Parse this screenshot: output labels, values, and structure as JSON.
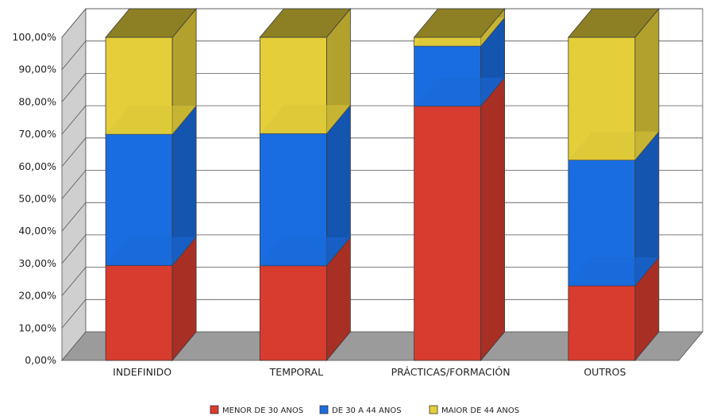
{
  "chart_data": {
    "type": "bar",
    "stacked": true,
    "three_d": true,
    "categories": [
      "INDEFINIDO",
      "TEMPORAL",
      "PRÁCTICAS/FORMACIÓN",
      "OUTROS"
    ],
    "series": [
      {
        "name": "MENOR DE 30 ANOS",
        "color": "#d83c2e",
        "values": [
          29.4,
          29.3,
          78.7,
          23.1
        ]
      },
      {
        "name": "DE 30 A 44 ANOS",
        "color": "#1a6de0",
        "values": [
          40.6,
          40.9,
          18.6,
          38.9
        ]
      },
      {
        "name": "MAIOR DE 44 ANOS",
        "color": "#e4cf3a",
        "values": [
          30.0,
          29.8,
          2.7,
          38.0
        ]
      }
    ],
    "y_ticks": [
      "0,00%",
      "10,00%",
      "20,00%",
      "30,00%",
      "40,00%",
      "50,00%",
      "60,00%",
      "70,00%",
      "80,00%",
      "90,00%",
      "100,00%"
    ],
    "ylim": [
      0,
      100
    ],
    "grid": true,
    "legend_position": "bottom"
  }
}
